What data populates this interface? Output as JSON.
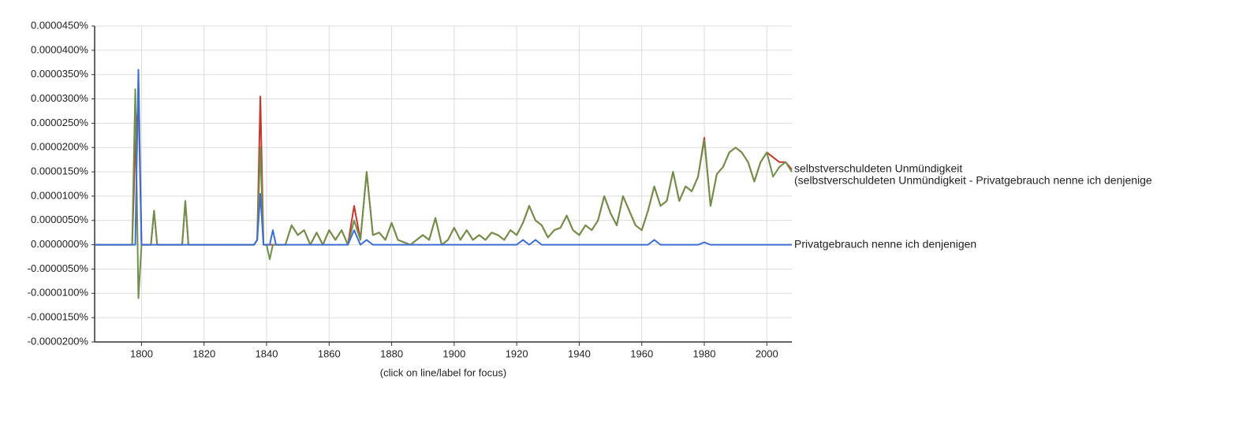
{
  "chart_data": {
    "type": "line",
    "footer": "(click on line/label for focus)",
    "xlim": [
      1785,
      2008
    ],
    "xticks": [
      1800,
      1820,
      1840,
      1860,
      1880,
      1900,
      1920,
      1940,
      1960,
      1980,
      2000
    ],
    "ylim": [
      -2e-05,
      4.5e-05
    ],
    "yticks": [
      {
        "value": 4.5e-05,
        "label": "0.0000450%"
      },
      {
        "value": 4e-05,
        "label": "0.0000400%"
      },
      {
        "value": 3.5e-05,
        "label": "0.0000350%"
      },
      {
        "value": 3e-05,
        "label": "0.0000300%"
      },
      {
        "value": 2.5e-05,
        "label": "0.0000250%"
      },
      {
        "value": 2e-05,
        "label": "0.0000200%"
      },
      {
        "value": 1.5e-05,
        "label": "0.0000150%"
      },
      {
        "value": 1e-05,
        "label": "0.0000100%"
      },
      {
        "value": 5e-06,
        "label": "0.0000050%"
      },
      {
        "value": 0,
        "label": "0.0000000%"
      },
      {
        "value": -5e-06,
        "label": "-0.0000050%"
      },
      {
        "value": -1e-05,
        "label": "-0.0000100%"
      },
      {
        "value": -1.5e-05,
        "label": "-0.0000150%"
      },
      {
        "value": -2e-05,
        "label": "-0.0000200%"
      }
    ],
    "grid": true,
    "x": [
      1785,
      1797,
      1798,
      1799,
      1800,
      1803,
      1804,
      1805,
      1812,
      1813,
      1814,
      1815,
      1836,
      1837,
      1838,
      1839,
      1840,
      1841,
      1842,
      1843,
      1844,
      1846,
      1848,
      1850,
      1852,
      1854,
      1856,
      1858,
      1860,
      1862,
      1864,
      1866,
      1868,
      1870,
      1872,
      1874,
      1876,
      1878,
      1880,
      1882,
      1884,
      1886,
      1888,
      1890,
      1892,
      1894,
      1896,
      1898,
      1900,
      1902,
      1904,
      1906,
      1908,
      1910,
      1912,
      1914,
      1916,
      1918,
      1920,
      1922,
      1924,
      1926,
      1928,
      1930,
      1932,
      1934,
      1936,
      1938,
      1940,
      1942,
      1944,
      1946,
      1948,
      1950,
      1952,
      1954,
      1956,
      1958,
      1960,
      1962,
      1964,
      1966,
      1968,
      1970,
      1972,
      1974,
      1976,
      1978,
      1980,
      1982,
      1984,
      1986,
      1988,
      1990,
      1992,
      1994,
      1996,
      1998,
      2000,
      2002,
      2004,
      2006,
      2008
    ],
    "series": [
      {
        "name": "selbstverschuldeten Unmündigkeit",
        "color": "#c0392b",
        "values": [
          0,
          0,
          2e-05,
          3e-05,
          0,
          0,
          7e-06,
          0,
          0,
          0,
          9e-06,
          0,
          0,
          1e-06,
          3.05e-05,
          0,
          0,
          0,
          0,
          0,
          0,
          0,
          4e-06,
          2e-06,
          3e-06,
          0,
          2.5e-06,
          0,
          3e-06,
          1e-06,
          3e-06,
          0,
          8e-06,
          1e-06,
          1.5e-05,
          2e-06,
          2.5e-06,
          1e-06,
          4.5e-06,
          1e-06,
          5e-07,
          0,
          1e-06,
          2e-06,
          1e-06,
          5.5e-06,
          0,
          1e-06,
          3.5e-06,
          1e-06,
          3e-06,
          1e-06,
          2e-06,
          1e-06,
          2.5e-06,
          2e-06,
          1e-06,
          3e-06,
          2e-06,
          4.5e-06,
          8e-06,
          5e-06,
          4e-06,
          1.5e-06,
          3e-06,
          3.5e-06,
          6e-06,
          3e-06,
          2e-06,
          4e-06,
          3e-06,
          5e-06,
          1e-05,
          6.5e-06,
          4e-06,
          1e-05,
          7e-06,
          4e-06,
          3e-06,
          7e-06,
          1.2e-05,
          8e-06,
          9e-06,
          1.5e-05,
          9e-06,
          1.2e-05,
          1.1e-05,
          1.4e-05,
          2.2e-05,
          8e-06,
          1.45e-05,
          1.6e-05,
          1.9e-05,
          2e-05,
          1.9e-05,
          1.7e-05,
          1.3e-05,
          1.7e-05,
          1.9e-05,
          1.8e-05,
          1.7e-05,
          1.7e-05,
          1.55e-05
        ]
      },
      {
        "name": "(selbstverschuldeten Unmündigkeit - Privatgebrauch nenne ich denjenige",
        "color": "#718f4c",
        "values": [
          0,
          0,
          3.2e-05,
          -1.1e-05,
          0,
          0,
          7e-06,
          0,
          0,
          0,
          9e-06,
          0,
          0,
          1e-06,
          2e-05,
          0,
          0,
          -3e-06,
          0,
          0,
          0,
          0,
          4e-06,
          2e-06,
          3e-06,
          0,
          2.5e-06,
          0,
          3e-06,
          1e-06,
          3e-06,
          0,
          5e-06,
          1e-06,
          1.5e-05,
          2e-06,
          2.5e-06,
          1e-06,
          4.5e-06,
          1e-06,
          5e-07,
          0,
          1e-06,
          2e-06,
          1e-06,
          5.5e-06,
          0,
          1e-06,
          3.5e-06,
          1e-06,
          3e-06,
          1e-06,
          2e-06,
          1e-06,
          2.5e-06,
          2e-06,
          1e-06,
          3e-06,
          2e-06,
          4.5e-06,
          8e-06,
          5e-06,
          4e-06,
          1.5e-06,
          3e-06,
          3.5e-06,
          6e-06,
          3e-06,
          2e-06,
          4e-06,
          3e-06,
          5e-06,
          1e-05,
          6.5e-06,
          4e-06,
          1e-05,
          7e-06,
          4e-06,
          3e-06,
          7e-06,
          1.2e-05,
          8e-06,
          9e-06,
          1.5e-05,
          9e-06,
          1.2e-05,
          1.1e-05,
          1.4e-05,
          2.15e-05,
          8e-06,
          1.45e-05,
          1.6e-05,
          1.9e-05,
          2e-05,
          1.9e-05,
          1.7e-05,
          1.3e-05,
          1.7e-05,
          1.9e-05,
          1.4e-05,
          1.6e-05,
          1.7e-05,
          1.5e-05
        ]
      },
      {
        "name": "Privatgebrauch nenne ich denjenigen",
        "color": "#3d6fd1",
        "values": [
          0,
          0,
          0,
          3.6e-05,
          0,
          0,
          0,
          0,
          0,
          0,
          0,
          0,
          0,
          1e-06,
          1.05e-05,
          0,
          0,
          0,
          3e-06,
          0,
          0,
          0,
          0,
          0,
          0,
          0,
          0,
          0,
          0,
          0,
          0,
          0,
          3e-06,
          0,
          1e-06,
          0,
          0,
          0,
          0,
          0,
          0,
          0,
          0,
          0,
          0,
          0,
          0,
          0,
          0,
          0,
          0,
          0,
          0,
          0,
          0,
          0,
          0,
          0,
          0,
          1e-06,
          0,
          1e-06,
          0,
          0,
          0,
          0,
          0,
          0,
          0,
          0,
          0,
          0,
          0,
          0,
          0,
          0,
          0,
          0,
          0,
          0,
          1e-06,
          0,
          0,
          0,
          0,
          0,
          0,
          0,
          5e-07,
          0,
          0,
          0,
          0,
          0,
          0,
          0,
          0,
          0,
          0,
          0,
          0,
          0,
          0
        ]
      }
    ]
  }
}
